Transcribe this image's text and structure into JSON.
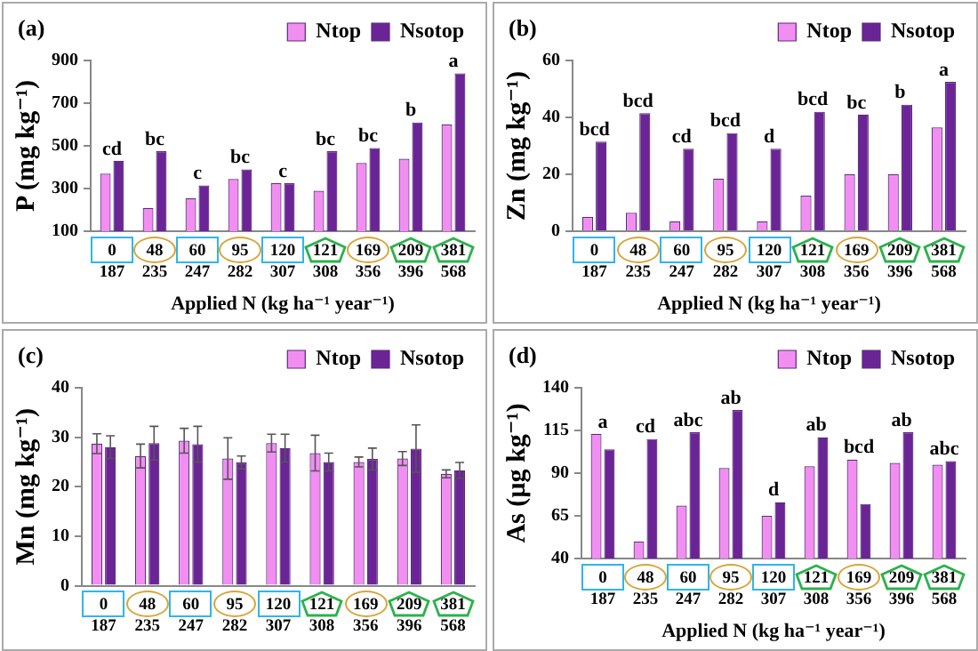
{
  "chart_data": [
    {
      "type": "bar",
      "title": "(a)",
      "xlabel": "Applied N (kg ha⁻¹ year⁻¹)",
      "ylabel": "P (mg kg⁻¹)",
      "legend": "top right",
      "ylim": [
        100,
        900
      ],
      "yticks": [
        100,
        300,
        500,
        700,
        900
      ],
      "categories": [
        "0\n187",
        "48\n235",
        "60\n247",
        "95\n282",
        "120\n307",
        "121\n308",
        "169\n356",
        "209\n396",
        "381\n568"
      ],
      "series": [
        {
          "name": "Ntop",
          "color": "#f28ef2",
          "values": [
            370,
            210,
            255,
            345,
            325,
            290,
            420,
            440,
            600
          ]
        },
        {
          "name": "Nsotop",
          "color": "#6b2496",
          "values": [
            430,
            475,
            315,
            390,
            325,
            475,
            490,
            610,
            840
          ]
        }
      ],
      "annotations": [
        {
          "text": "cd",
          "x": "0\n187",
          "y": 430
        },
        {
          "text": "bc",
          "x": "48\n235",
          "y": 475
        },
        {
          "text": "c",
          "x": "60\n247",
          "y": 315
        },
        {
          "text": "bc",
          "x": "95\n282",
          "y": 390
        },
        {
          "text": "c",
          "x": "120\n307",
          "y": 325
        },
        {
          "text": "bc",
          "x": "121\n308",
          "y": 475
        },
        {
          "text": "bc",
          "x": "169\n356",
          "y": 490
        },
        {
          "text": "b",
          "x": "209\n396",
          "y": 610
        },
        {
          "text": "a",
          "x": "381\n568",
          "y": 840
        }
      ]
    },
    {
      "type": "bar",
      "title": "(b)",
      "xlabel": "Applied N (kg ha⁻¹ year⁻¹)",
      "ylabel": "Zn (mg kg⁻¹)",
      "legend": "top right",
      "ylim": [
        0,
        60
      ],
      "yticks": [
        0,
        20,
        40,
        60
      ],
      "categories": [
        "0\n187",
        "48\n235",
        "60\n247",
        "95\n282",
        "120\n307",
        "121\n308",
        "169\n356",
        "209\n396",
        "381\n568"
      ],
      "series": [
        {
          "name": "Ntop",
          "color": "#f28ef2",
          "values": [
            5,
            6.5,
            3.5,
            18.5,
            3.5,
            12.5,
            20,
            20,
            36.5
          ]
        },
        {
          "name": "Nsotop",
          "color": "#6b2496",
          "values": [
            31.5,
            41.5,
            29,
            34.5,
            29,
            42,
            41,
            44.5,
            52.5
          ]
        }
      ],
      "annotations": [
        {
          "text": "bcd",
          "x": "0\n187",
          "y": 31.5
        },
        {
          "text": "bcd",
          "x": "48\n235",
          "y": 41.5
        },
        {
          "text": "cd",
          "x": "60\n247",
          "y": 29
        },
        {
          "text": "bcd",
          "x": "95\n282",
          "y": 34.5
        },
        {
          "text": "d",
          "x": "120\n307",
          "y": 29
        },
        {
          "text": "bcd",
          "x": "121\n308",
          "y": 42
        },
        {
          "text": "bc",
          "x": "169\n356",
          "y": 41
        },
        {
          "text": "b",
          "x": "209\n396",
          "y": 44.5
        },
        {
          "text": "a",
          "x": "381\n568",
          "y": 52.5
        }
      ]
    },
    {
      "type": "bar",
      "title": "(c)",
      "ylabel": "Mn (mg kg⁻¹)",
      "legend": "top right",
      "ylim": [
        0,
        40
      ],
      "yticks": [
        0,
        10,
        20,
        30,
        40
      ],
      "categories": [
        "0\n187",
        "48\n235",
        "60\n247",
        "95\n282",
        "120\n307",
        "121\n308",
        "169\n356",
        "209\n396",
        "381\n568"
      ],
      "series": [
        {
          "name": "Ntop",
          "color": "#f28ef2",
          "values": [
            28.7,
            26.2,
            29.3,
            25.7,
            28.8,
            26.8,
            25,
            25.7,
            22.6
          ],
          "errors": [
            2,
            2.4,
            2.5,
            4.2,
            1.8,
            3.6,
            1,
            1.4,
            0.8
          ]
        },
        {
          "name": "Nsotop",
          "color": "#6b2496",
          "values": [
            28,
            28.8,
            28.6,
            24.9,
            27.8,
            25,
            25.6,
            27.7,
            23.3
          ],
          "errors": [
            2.3,
            3.4,
            3.6,
            1.3,
            2.8,
            1.8,
            2.2,
            4.8,
            1.6
          ]
        }
      ]
    },
    {
      "type": "bar",
      "title": "(d)",
      "xlabel": "Applied N (kg ha⁻¹ year⁻¹)",
      "ylabel": "As (µg kg⁻¹)",
      "legend": "top right",
      "ylim": [
        40,
        140
      ],
      "yticks": [
        40,
        65,
        90,
        115,
        140
      ],
      "categories": [
        "0\n187",
        "48\n235",
        "60\n247",
        "95\n282",
        "120\n307",
        "121\n308",
        "169\n356",
        "209\n396",
        "381\n568"
      ],
      "series": [
        {
          "name": "Ntop",
          "color": "#f28ef2",
          "values": [
            113,
            50,
            71,
            93,
            65,
            94,
            98,
            96,
            95
          ]
        },
        {
          "name": "Nsotop",
          "color": "#6b2496",
          "values": [
            104,
            110,
            114,
            127,
            73,
            111,
            72,
            114,
            97
          ]
        }
      ],
      "annotations": [
        {
          "text": "a",
          "x": "0\n187",
          "y": 113
        },
        {
          "text": "cd",
          "x": "48\n235",
          "y": 110
        },
        {
          "text": "abc",
          "x": "60\n247",
          "y": 114
        },
        {
          "text": "ab",
          "x": "95\n282",
          "y": 127
        },
        {
          "text": "d",
          "x": "120\n307",
          "y": 73
        },
        {
          "text": "ab",
          "x": "121\n308",
          "y": 111
        },
        {
          "text": "bcd",
          "x": "169\n356",
          "y": 98
        },
        {
          "text": "ab",
          "x": "209\n396",
          "y": 114
        },
        {
          "text": "abc",
          "x": "381\n568",
          "y": 97
        }
      ]
    }
  ]
}
